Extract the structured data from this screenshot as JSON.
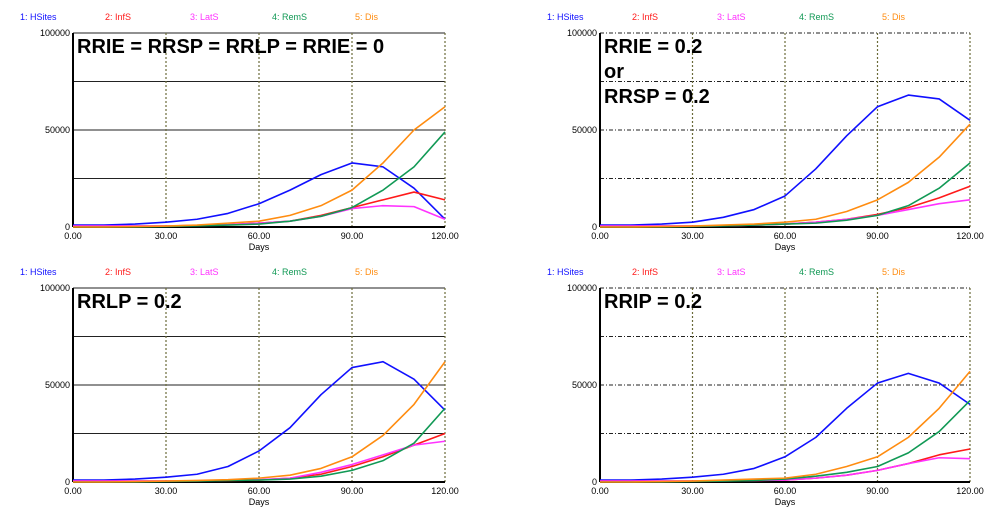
{
  "colors": {
    "HSites": "#1010ff",
    "InfS": "#ff1a1a",
    "LatS": "#ff33ff",
    "RemS": "#119955",
    "Dis": "#ff8c10"
  },
  "legend": [
    "1: HSites",
    "2: InfS",
    "3: LatS",
    "4: RemS",
    "5: Dis"
  ],
  "chart_data": [
    {
      "type": "line",
      "annotation": [
        "RRIE = RRSP = RRLP = RRIE = 0"
      ],
      "xlabel": "Days",
      "xlim": [
        0,
        120
      ],
      "ylim": [
        0,
        100000
      ],
      "x_ticks": [
        "0.00",
        "30.00",
        "60.00",
        "90.00",
        "120.00"
      ],
      "y_ticks": [
        "0",
        "50000",
        "100000"
      ],
      "grid": true,
      "x": [
        0,
        10,
        20,
        30,
        40,
        50,
        60,
        70,
        80,
        90,
        100,
        110,
        120
      ],
      "series": [
        {
          "name": "1: HSites",
          "key": "HSites",
          "values": [
            1000,
            1000,
            1500,
            2500,
            4000,
            7000,
            12000,
            19000,
            27000,
            33000,
            31000,
            20000,
            4000
          ]
        },
        {
          "name": "2: InfS",
          "key": "InfS",
          "values": [
            500,
            500,
            500,
            500,
            800,
            1200,
            2000,
            3000,
            6000,
            10000,
            14000,
            18000,
            14000
          ]
        },
        {
          "name": "3: LatS",
          "key": "LatS",
          "values": [
            500,
            500,
            500,
            500,
            800,
            1200,
            2000,
            3000,
            5500,
            9500,
            11000,
            10500,
            4000
          ]
        },
        {
          "name": "4: RemS",
          "key": "RemS",
          "values": [
            0,
            0,
            0,
            300,
            600,
            1000,
            1500,
            3000,
            5500,
            10000,
            19000,
            31000,
            49000
          ]
        },
        {
          "name": "5: Dis",
          "key": "Dis",
          "values": [
            0,
            0,
            200,
            500,
            1000,
            2000,
            3000,
            6000,
            11000,
            19000,
            33000,
            50000,
            62000
          ]
        }
      ]
    },
    {
      "type": "line",
      "annotation": [
        "RRIE = 0.2",
        "or",
        "RRSP = 0.2"
      ],
      "xlabel": "Days",
      "xlim": [
        0,
        120
      ],
      "ylim": [
        0,
        100000
      ],
      "x_ticks": [
        "0.00",
        "30.00",
        "60.00",
        "90.00",
        "120.00"
      ],
      "y_ticks": [
        "0",
        "50000",
        "100000"
      ],
      "grid": true,
      "x": [
        0,
        10,
        20,
        30,
        40,
        50,
        60,
        70,
        80,
        90,
        100,
        110,
        120
      ],
      "series": [
        {
          "name": "1: HSites",
          "key": "HSites",
          "values": [
            1000,
            1000,
            1500,
            2500,
            5000,
            9000,
            16000,
            30000,
            47000,
            62000,
            68000,
            66000,
            55000
          ]
        },
        {
          "name": "2: InfS",
          "key": "InfS",
          "values": [
            500,
            500,
            500,
            500,
            700,
            1000,
            1500,
            2500,
            4000,
            6500,
            10000,
            15000,
            21000
          ]
        },
        {
          "name": "3: LatS",
          "key": "LatS",
          "values": [
            500,
            500,
            500,
            500,
            700,
            1000,
            1500,
            2500,
            4000,
            6000,
            9000,
            12000,
            14000
          ]
        },
        {
          "name": "4: RemS",
          "key": "RemS",
          "values": [
            0,
            0,
            0,
            300,
            600,
            1000,
            1500,
            2000,
            3500,
            6000,
            11000,
            20000,
            33000
          ]
        },
        {
          "name": "5: Dis",
          "key": "Dis",
          "values": [
            0,
            0,
            200,
            500,
            1000,
            1500,
            2500,
            4000,
            8000,
            14000,
            23000,
            36000,
            53000
          ]
        }
      ]
    },
    {
      "type": "line",
      "annotation": [
        "RRLP = 0.2"
      ],
      "xlabel": "Days",
      "xlim": [
        0,
        120
      ],
      "ylim": [
        0,
        100000
      ],
      "x_ticks": [
        "0.00",
        "30.00",
        "60.00",
        "90.00",
        "120.00"
      ],
      "y_ticks": [
        "0",
        "50000",
        "100000"
      ],
      "grid": true,
      "x": [
        0,
        10,
        20,
        30,
        40,
        50,
        60,
        70,
        80,
        90,
        100,
        110,
        120
      ],
      "series": [
        {
          "name": "1: HSites",
          "key": "HSites",
          "values": [
            1000,
            1000,
            1500,
            2500,
            4000,
            8000,
            16000,
            28000,
            45000,
            59000,
            62000,
            53000,
            37000
          ]
        },
        {
          "name": "2: InfS",
          "key": "InfS",
          "values": [
            500,
            500,
            500,
            500,
            600,
            800,
            1000,
            2000,
            4000,
            8000,
            13000,
            19000,
            25000
          ]
        },
        {
          "name": "3: LatS",
          "key": "LatS",
          "values": [
            500,
            500,
            500,
            500,
            600,
            900,
            1200,
            2000,
            5000,
            9000,
            14000,
            19000,
            21000
          ]
        },
        {
          "name": "4: RemS",
          "key": "RemS",
          "values": [
            0,
            0,
            0,
            300,
            500,
            800,
            1000,
            1500,
            3000,
            6000,
            11000,
            20000,
            38000
          ]
        },
        {
          "name": "5: Dis",
          "key": "Dis",
          "values": [
            0,
            0,
            200,
            500,
            800,
            1200,
            2000,
            3500,
            7000,
            13000,
            24000,
            40000,
            62000
          ]
        }
      ]
    },
    {
      "type": "line",
      "annotation": [
        "RRIP = 0.2"
      ],
      "xlabel": "Days",
      "xlim": [
        0,
        120
      ],
      "ylim": [
        0,
        100000
      ],
      "x_ticks": [
        "0.00",
        "30.00",
        "60.00",
        "90.00",
        "120.00"
      ],
      "y_ticks": [
        "0",
        "50000",
        "100000"
      ],
      "grid": true,
      "x": [
        0,
        10,
        20,
        30,
        40,
        50,
        60,
        70,
        80,
        90,
        100,
        110,
        120
      ],
      "series": [
        {
          "name": "1: HSites",
          "key": "HSites",
          "values": [
            1000,
            1000,
            1500,
            2500,
            4000,
            7000,
            13000,
            23000,
            38000,
            51000,
            56000,
            51000,
            40000
          ]
        },
        {
          "name": "2: InfS",
          "key": "InfS",
          "values": [
            500,
            500,
            500,
            500,
            600,
            800,
            1000,
            2000,
            3500,
            6000,
            9500,
            14000,
            17000
          ]
        },
        {
          "name": "3: LatS",
          "key": "LatS",
          "values": [
            500,
            500,
            500,
            500,
            600,
            800,
            1000,
            2000,
            3500,
            6000,
            9500,
            12500,
            12000
          ]
        },
        {
          "name": "4: RemS",
          "key": "RemS",
          "values": [
            0,
            0,
            0,
            300,
            500,
            800,
            1500,
            3000,
            5000,
            8000,
            15000,
            26000,
            42000
          ]
        },
        {
          "name": "5: Dis",
          "key": "Dis",
          "values": [
            0,
            0,
            200,
            500,
            1000,
            1500,
            2000,
            4000,
            8000,
            13000,
            23000,
            38000,
            57000
          ]
        }
      ]
    }
  ]
}
